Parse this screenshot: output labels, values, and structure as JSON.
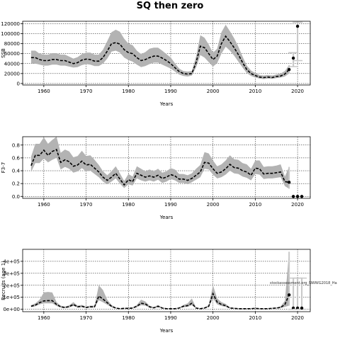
{
  "figure": {
    "title": "SQ then zero",
    "annotation": "stockassessment.org_NWWG2018_Ha"
  },
  "chart_data": [
    {
      "type": "area",
      "name": "ssb",
      "xlabel": "Years",
      "ylabel": "SSB",
      "xlim": [
        1955,
        2023
      ],
      "ylim": [
        -3000,
        125000
      ],
      "xticks": [
        1960,
        1970,
        1980,
        1990,
        2000,
        2010,
        2020
      ],
      "yticks": [
        0,
        20000,
        40000,
        60000,
        80000,
        100000,
        120000
      ],
      "ytick_labels": [
        "0",
        "20000",
        "40000",
        "60000",
        "80000",
        "100000",
        "120000"
      ],
      "grid": true,
      "x": [
        1957,
        1958,
        1959,
        1960,
        1961,
        1962,
        1963,
        1964,
        1965,
        1966,
        1967,
        1968,
        1969,
        1970,
        1971,
        1972,
        1973,
        1974,
        1975,
        1976,
        1977,
        1978,
        1979,
        1980,
        1981,
        1982,
        1983,
        1984,
        1985,
        1986,
        1987,
        1988,
        1989,
        1990,
        1991,
        1992,
        1993,
        1994,
        1995,
        1996,
        1997,
        1998,
        1999,
        2000,
        2001,
        2002,
        2003,
        2004,
        2005,
        2006,
        2007,
        2008,
        2009,
        2010,
        2011,
        2012,
        2013,
        2014,
        2015,
        2016,
        2017,
        2018
      ],
      "values": [
        52000,
        52000,
        48000,
        46000,
        46000,
        48000,
        48000,
        46000,
        46000,
        43000,
        40000,
        42000,
        47000,
        49000,
        48000,
        45000,
        45000,
        52000,
        65000,
        80000,
        82000,
        79000,
        68000,
        62000,
        60000,
        52000,
        46000,
        48000,
        52000,
        55000,
        55000,
        51000,
        46000,
        40000,
        32000,
        24000,
        20000,
        19000,
        20000,
        42000,
        75000,
        72000,
        60000,
        48000,
        55000,
        80000,
        95000,
        84000,
        72000,
        58000,
        42000,
        28000,
        20000,
        16000,
        13000,
        12000,
        13000,
        12000,
        14000,
        15000,
        19000,
        28000
      ],
      "lower": [
        40000,
        40000,
        38000,
        36000,
        36000,
        38000,
        38000,
        36000,
        36000,
        34000,
        32000,
        33000,
        37000,
        39000,
        38000,
        35000,
        35000,
        40000,
        50000,
        64000,
        66000,
        62000,
        52000,
        47000,
        44000,
        38000,
        33000,
        35000,
        39000,
        42000,
        42000,
        38000,
        34000,
        30000,
        24000,
        18000,
        15000,
        14000,
        16000,
        32000,
        57000,
        52000,
        43000,
        34000,
        41000,
        60000,
        74000,
        66000,
        56000,
        44000,
        32000,
        21000,
        15000,
        12000,
        10000,
        9000,
        10000,
        9500,
        11000,
        12000,
        14000,
        20000
      ],
      "upper": [
        66000,
        66000,
        60000,
        58000,
        58000,
        61000,
        61000,
        58000,
        58000,
        54000,
        50000,
        53000,
        59000,
        62000,
        62000,
        58000,
        58000,
        68000,
        85000,
        103000,
        108000,
        104000,
        90000,
        80000,
        77000,
        66000,
        59000,
        63000,
        70000,
        72000,
        72000,
        66000,
        59000,
        52000,
        41000,
        30000,
        25000,
        24000,
        25000,
        54000,
        97000,
        92000,
        78000,
        62000,
        70000,
        103000,
        118000,
        105000,
        91000,
        74000,
        54000,
        36000,
        26000,
        21000,
        17000,
        16000,
        17000,
        16000,
        18000,
        20000,
        25000,
        37000
      ],
      "projection": {
        "x": [
          2019,
          2020
        ],
        "values": [
          51000,
          115000
        ],
        "lower": [
          34000,
          46000
        ],
        "upper": [
          62000,
          123000
        ]
      }
    },
    {
      "type": "area",
      "name": "f",
      "xlabel": "Years",
      "ylabel": "F3-7",
      "xlim": [
        1955,
        2023
      ],
      "ylim": [
        -0.03,
        0.93
      ],
      "xticks": [
        1960,
        1970,
        1980,
        1990,
        2000,
        2010,
        2020
      ],
      "yticks": [
        0.0,
        0.2,
        0.4,
        0.6,
        0.8
      ],
      "ytick_labels": [
        "0.0",
        "0.2",
        "0.4",
        "0.6",
        "0.8"
      ],
      "grid": true,
      "x": [
        1957,
        1958,
        1959,
        1960,
        1961,
        1962,
        1963,
        1964,
        1965,
        1966,
        1967,
        1968,
        1969,
        1970,
        1971,
        1972,
        1973,
        1974,
        1975,
        1976,
        1977,
        1978,
        1979,
        1980,
        1981,
        1982,
        1983,
        1984,
        1985,
        1986,
        1987,
        1988,
        1989,
        1990,
        1991,
        1992,
        1993,
        1994,
        1995,
        1996,
        1997,
        1998,
        1999,
        2000,
        2001,
        2002,
        2003,
        2004,
        2005,
        2006,
        2007,
        2008,
        2009,
        2010,
        2011,
        2012,
        2013,
        2014,
        2015,
        2016,
        2017,
        2018
      ],
      "values": [
        0.48,
        0.64,
        0.64,
        0.72,
        0.64,
        0.7,
        0.73,
        0.53,
        0.57,
        0.54,
        0.47,
        0.49,
        0.55,
        0.49,
        0.5,
        0.44,
        0.38,
        0.3,
        0.25,
        0.3,
        0.36,
        0.27,
        0.18,
        0.26,
        0.23,
        0.36,
        0.33,
        0.3,
        0.32,
        0.3,
        0.33,
        0.28,
        0.3,
        0.34,
        0.32,
        0.27,
        0.27,
        0.25,
        0.28,
        0.33,
        0.38,
        0.53,
        0.52,
        0.43,
        0.36,
        0.38,
        0.43,
        0.5,
        0.45,
        0.44,
        0.4,
        0.38,
        0.33,
        0.44,
        0.43,
        0.35,
        0.36,
        0.36,
        0.37,
        0.38,
        0.23,
        0.22
      ],
      "lower": [
        0.38,
        0.52,
        0.52,
        0.59,
        0.53,
        0.57,
        0.6,
        0.42,
        0.46,
        0.43,
        0.37,
        0.39,
        0.44,
        0.39,
        0.4,
        0.35,
        0.3,
        0.23,
        0.19,
        0.23,
        0.28,
        0.2,
        0.13,
        0.19,
        0.17,
        0.28,
        0.25,
        0.23,
        0.25,
        0.23,
        0.26,
        0.21,
        0.23,
        0.27,
        0.25,
        0.21,
        0.21,
        0.19,
        0.22,
        0.26,
        0.3,
        0.43,
        0.42,
        0.34,
        0.28,
        0.3,
        0.34,
        0.4,
        0.36,
        0.35,
        0.31,
        0.29,
        0.25,
        0.35,
        0.34,
        0.27,
        0.28,
        0.28,
        0.29,
        0.3,
        0.16,
        0.12
      ],
      "upper": [
        0.62,
        0.82,
        0.82,
        0.92,
        0.82,
        0.88,
        0.93,
        0.68,
        0.73,
        0.7,
        0.61,
        0.63,
        0.71,
        0.63,
        0.64,
        0.57,
        0.49,
        0.39,
        0.33,
        0.39,
        0.47,
        0.36,
        0.24,
        0.35,
        0.31,
        0.47,
        0.43,
        0.39,
        0.42,
        0.39,
        0.43,
        0.37,
        0.39,
        0.44,
        0.42,
        0.35,
        0.35,
        0.33,
        0.36,
        0.43,
        0.49,
        0.69,
        0.67,
        0.56,
        0.47,
        0.5,
        0.56,
        0.64,
        0.58,
        0.57,
        0.52,
        0.5,
        0.43,
        0.56,
        0.56,
        0.46,
        0.47,
        0.47,
        0.48,
        0.5,
        0.31,
        0.46
      ],
      "projection": {
        "x": [
          2019,
          2020,
          2021
        ],
        "values": [
          0.0,
          0.0,
          0.0
        ],
        "lower": [
          0.0,
          0.0,
          0.0
        ],
        "upper": [
          0.0,
          0.0,
          0.0
        ]
      }
    },
    {
      "type": "area",
      "name": "recruits",
      "xlabel": "Years",
      "ylabel": "Recruits (age 1)",
      "xlim": [
        1955,
        2023
      ],
      "ylim": [
        -20000,
        500000
      ],
      "xticks": [
        1960,
        1970,
        1980,
        1990,
        2000,
        2010,
        2020
      ],
      "yticks": [
        0,
        100000,
        200000,
        300000,
        400000
      ],
      "ytick_labels": [
        "0e+00",
        "1e+05",
        "2e+05",
        "3e+05",
        "4e+05"
      ],
      "grid": true,
      "x": [
        1957,
        1958,
        1959,
        1960,
        1961,
        1962,
        1963,
        1964,
        1965,
        1966,
        1967,
        1968,
        1969,
        1970,
        1971,
        1972,
        1973,
        1974,
        1975,
        1976,
        1977,
        1978,
        1979,
        1980,
        1981,
        1982,
        1983,
        1984,
        1985,
        1986,
        1987,
        1988,
        1989,
        1990,
        1991,
        1992,
        1993,
        1994,
        1995,
        1996,
        1997,
        1998,
        1999,
        2000,
        2001,
        2002,
        2003,
        2004,
        2005,
        2006,
        2007,
        2008,
        2009,
        2010,
        2011,
        2012,
        2013,
        2014,
        2015,
        2016,
        2017,
        2018
      ],
      "values": [
        25000,
        35000,
        55000,
        70000,
        72000,
        72000,
        40000,
        20000,
        15000,
        22000,
        40000,
        20000,
        25000,
        15000,
        20000,
        20000,
        110000,
        85000,
        55000,
        25000,
        10000,
        5000,
        8000,
        8000,
        10000,
        25000,
        50000,
        45000,
        20000,
        12000,
        25000,
        10000,
        5000,
        5000,
        5000,
        10000,
        25000,
        30000,
        50000,
        10000,
        5000,
        10000,
        25000,
        130000,
        60000,
        40000,
        30000,
        10000,
        8000,
        5000,
        5000,
        5000,
        5000,
        8000,
        5000,
        5000,
        5000,
        8000,
        10000,
        15000,
        40000,
        120000
      ],
      "lower": [
        18000,
        25000,
        40000,
        50000,
        50000,
        50000,
        28000,
        14000,
        10000,
        15000,
        28000,
        14000,
        17000,
        10000,
        14000,
        14000,
        75000,
        58000,
        38000,
        17000,
        7000,
        3000,
        5000,
        5000,
        7000,
        17000,
        34000,
        30000,
        14000,
        8000,
        17000,
        7000,
        3000,
        3000,
        3000,
        7000,
        17000,
        20000,
        34000,
        7000,
        3000,
        7000,
        17000,
        90000,
        40000,
        27000,
        20000,
        7000,
        5000,
        3000,
        3000,
        3000,
        3000,
        5000,
        3000,
        3000,
        3000,
        5000,
        7000,
        10000,
        20000,
        30000
      ],
      "upper": [
        35000,
        50000,
        80000,
        140000,
        145000,
        140000,
        60000,
        30000,
        22000,
        33000,
        60000,
        30000,
        36000,
        22000,
        30000,
        30000,
        200000,
        160000,
        80000,
        36000,
        15000,
        8000,
        12000,
        12000,
        15000,
        36000,
        80000,
        65000,
        30000,
        18000,
        36000,
        15000,
        8000,
        8000,
        8000,
        15000,
        36000,
        50000,
        90000,
        15000,
        8000,
        15000,
        36000,
        200000,
        90000,
        60000,
        45000,
        15000,
        12000,
        8000,
        8000,
        8000,
        8000,
        12000,
        8000,
        8000,
        8000,
        12000,
        15000,
        25000,
        70000,
        480000
      ],
      "projection": {
        "x": [
          2019,
          2020,
          2021
        ],
        "values": [
          10000,
          10000,
          10000
        ],
        "lower": [
          0,
          0,
          0
        ],
        "upper": [
          260000,
          260000,
          260000
        ]
      }
    }
  ],
  "colors": {
    "band": "#b3b3b3",
    "line": "#000000",
    "projection": "#c8c8c8"
  }
}
